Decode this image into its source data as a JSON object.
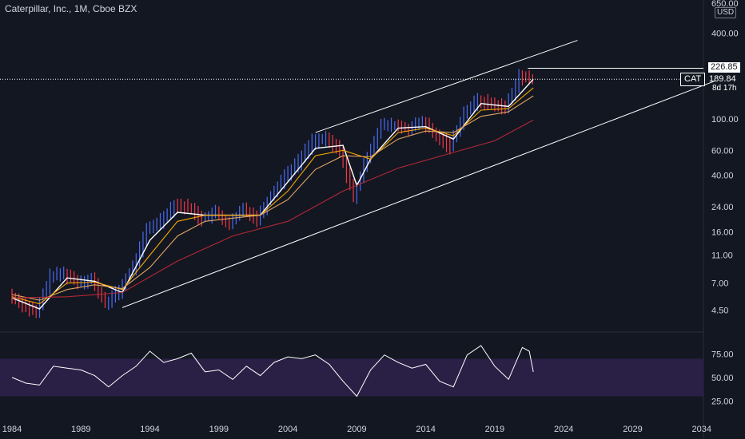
{
  "header": {
    "title": "Caterpillar, Inc., 1M, Cboe BZX",
    "currency": "USD"
  },
  "price_labels": {
    "high_price": "226.85",
    "symbol": "CAT",
    "last_price": "189.84",
    "countdown": "8d 17h"
  },
  "colors": {
    "background": "#131722",
    "price_bar_up": "#4a6bf2",
    "price_bar_down": "#f23645",
    "ma_fast": "#ffffff",
    "ma_mid": "#f7a600",
    "ma_slow": "#e0a45f",
    "ma_long": "#b22833",
    "channel": "#ffffff",
    "rsi_line": "#ffffff",
    "rsi_band": "#2a1f45"
  },
  "chart_data": [
    {
      "type": "candlestick",
      "title": "Caterpillar, Inc., 1M, Cboe BZX",
      "scale": "log",
      "y_ticks": [
        "650.00",
        "400.00",
        "226.85",
        "100.00",
        "60.00",
        "40.00",
        "24.00",
        "16.00",
        "11.00",
        "7.00",
        "4.50"
      ],
      "x_ticks": [
        "1984",
        "1989",
        "1994",
        "1999",
        "2004",
        "2009",
        "2014",
        "2019",
        "2024",
        "2029",
        "2034"
      ],
      "ylim": [
        3.6,
        650
      ],
      "xlim": [
        1984,
        2035
      ],
      "series": [
        {
          "name": "price",
          "x": [
            1984,
            1985,
            1986,
            1987,
            1988,
            1989,
            1990,
            1991,
            1992,
            1993,
            1994,
            1995,
            1996,
            1997,
            1998,
            1999,
            2000,
            2001,
            2002,
            2003,
            2004,
            2005,
            2006,
            2007,
            2008,
            2009,
            2010,
            2011,
            2012,
            2013,
            2014,
            2015,
            2016,
            2017,
            2018,
            2019,
            2020,
            2021,
            2021.8
          ],
          "y": [
            5.8,
            5.0,
            4.3,
            7.8,
            8.2,
            7.2,
            7.5,
            5.0,
            6.2,
            9.0,
            16.5,
            19.5,
            25.0,
            24.0,
            20.0,
            22.0,
            18.0,
            23.5,
            20.0,
            29.0,
            40.0,
            50.0,
            70.0,
            72.0,
            60.0,
            28.0,
            55.0,
            90.0,
            90.0,
            85.0,
            96.0,
            75.0,
            65.0,
            110.0,
            135.0,
            128.0,
            120.0,
            200.0,
            189.84
          ]
        },
        {
          "name": "ma_fast",
          "x": [
            1984,
            1986,
            1988,
            1990,
            1992,
            1994,
            1996,
            1998,
            2000,
            2002,
            2004,
            2006,
            2008,
            2009,
            2010,
            2012,
            2014,
            2016,
            2018,
            2020,
            2021.8
          ],
          "y": [
            5.5,
            4.6,
            7.6,
            7.2,
            6.0,
            14.0,
            22.0,
            21.0,
            21.0,
            21.0,
            36.0,
            62.0,
            65.0,
            34.0,
            52.0,
            86.0,
            88.0,
            72.0,
            128.0,
            122.0,
            190.0
          ]
        },
        {
          "name": "ma_mid",
          "x": [
            1984,
            1986,
            1988,
            1990,
            1992,
            1994,
            1996,
            1998,
            2000,
            2002,
            2004,
            2006,
            2008,
            2010,
            2012,
            2014,
            2016,
            2018,
            2020,
            2021.8
          ],
          "y": [
            5.6,
            5.0,
            7.0,
            7.1,
            6.3,
            11.0,
            19.0,
            21.0,
            21.0,
            21.0,
            31.0,
            55.0,
            60.0,
            52.0,
            80.0,
            86.0,
            76.0,
            115.0,
            118.0,
            165.0
          ]
        },
        {
          "name": "ma_slow",
          "x": [
            1984,
            1986,
            1988,
            1990,
            1992,
            1994,
            1996,
            1998,
            2000,
            2002,
            2004,
            2006,
            2008,
            2010,
            2012,
            2014,
            2016,
            2018,
            2020,
            2021.8
          ],
          "y": [
            5.8,
            5.3,
            6.3,
            6.8,
            6.4,
            9.0,
            15.0,
            19.0,
            20.0,
            21.0,
            27.0,
            44.0,
            55.0,
            54.0,
            72.0,
            82.0,
            80.0,
            104.0,
            112.0,
            145.0
          ]
        },
        {
          "name": "ma_long",
          "x": [
            1984,
            1988,
            1992,
            1996,
            2000,
            2004,
            2008,
            2012,
            2016,
            2019,
            2021.8
          ],
          "y": [
            5.5,
            5.6,
            6.0,
            10.0,
            15.0,
            19.0,
            31.0,
            45.0,
            58.0,
            70.0,
            98.0
          ]
        }
      ],
      "channel_lines": [
        {
          "x": [
            2006,
            2025
          ],
          "y": [
            80,
            356
          ]
        },
        {
          "x": [
            1992,
            2035
          ],
          "y": [
            4.7,
            185
          ]
        }
      ],
      "horizontal_line": 226.85
    },
    {
      "type": "line",
      "y_ticks": [
        "75.00",
        "50.00",
        "25.00"
      ],
      "ylim": [
        10,
        95
      ],
      "band": [
        30,
        70
      ],
      "series": [
        {
          "name": "rsi",
          "x": [
            1984,
            1985,
            1986,
            1987,
            1988,
            1989,
            1990,
            1991,
            1992,
            1993,
            1994,
            1995,
            1996,
            1997,
            1998,
            1999,
            2000,
            2001,
            2002,
            2003,
            2004,
            2005,
            2006,
            2007,
            2008,
            2009,
            2010,
            2011,
            2012,
            2013,
            2014,
            2015,
            2016,
            2017,
            2018,
            2019,
            2020,
            2021,
            2021.5,
            2021.8
          ],
          "y": [
            50,
            44,
            42,
            62,
            60,
            58,
            52,
            40,
            52,
            62,
            78,
            66,
            70,
            76,
            56,
            58,
            48,
            62,
            52,
            66,
            72,
            70,
            74,
            64,
            46,
            30,
            58,
            74,
            66,
            60,
            64,
            46,
            40,
            74,
            84,
            62,
            48,
            82,
            78,
            56
          ]
        }
      ]
    }
  ]
}
